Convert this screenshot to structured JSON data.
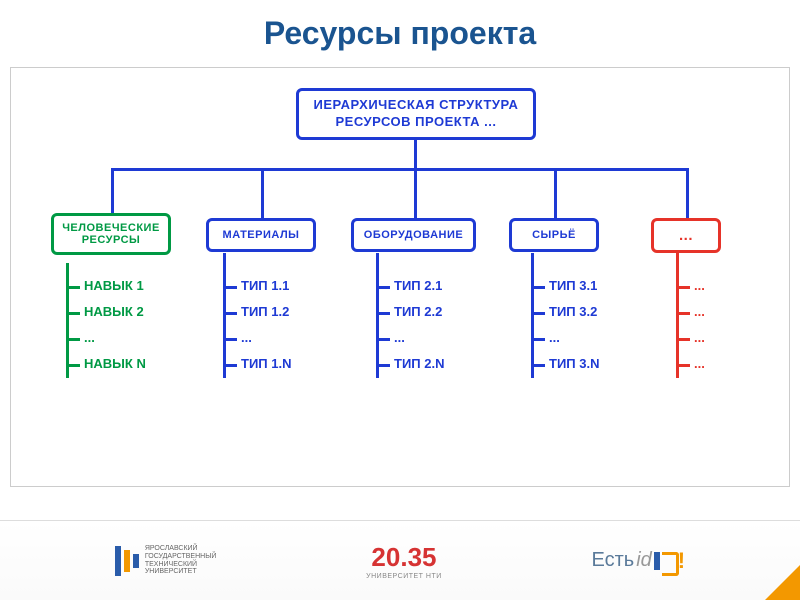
{
  "title": "Ресурсы проекта",
  "diagram": {
    "type": "tree",
    "root": {
      "label": "ИЕРАРХИЧЕСКАЯ СТРУКТУРА\nРЕСУРСОВ ПРОЕКТА ...",
      "border_color": "#1e3ad4",
      "text_color": "#1e3ad4"
    },
    "categories": [
      {
        "label": "ЧЕЛОВЕЧЕСКИЕ\nРЕСУРСЫ",
        "border_color": "#009944",
        "text_color": "#009944",
        "items": [
          "НАВЫК 1",
          "НАВЫК 2",
          "...",
          "НАВЫК N"
        ]
      },
      {
        "label": "МАТЕРИАЛЫ",
        "border_color": "#1e3ad4",
        "text_color": "#1e3ad4",
        "items": [
          "ТИП 1.1",
          "ТИП 1.2",
          "...",
          "ТИП 1.N"
        ]
      },
      {
        "label": "ОБОРУДОВАНИЕ",
        "border_color": "#1e3ad4",
        "text_color": "#1e3ad4",
        "items": [
          "ТИП 2.1",
          "ТИП 2.2",
          "...",
          "ТИП 2.N"
        ]
      },
      {
        "label": "СЫРЬЁ",
        "border_color": "#1e3ad4",
        "text_color": "#1e3ad4",
        "items": [
          "ТИП 3.1",
          "ТИП 3.2",
          "...",
          "ТИП 3.N"
        ]
      },
      {
        "label": "...",
        "border_color": "#e63329",
        "text_color": "#e63329",
        "items": [
          "...",
          "...",
          "...",
          "..."
        ]
      }
    ],
    "connector_color": "#1e3ad4",
    "connector_width": 3,
    "background_color": "#ffffff"
  },
  "footer": {
    "logo1_text": "ЯРОСЛАВСКИЙ\nГОСУДАРСТВЕННЫЙ\nТЕХНИЧЕСКИЙ\nУНИВЕРСИТЕТ",
    "logo2_num": "20.35",
    "logo2_text": "УНИВЕРСИТЕТ НТИ",
    "logo3_est": "Есть",
    "logo3_id": "id",
    "logo3_excl": "!",
    "colors": {
      "ystu_blue": "#2a5caa",
      "ystu_orange": "#f39800",
      "num_red": "#d63333"
    }
  }
}
